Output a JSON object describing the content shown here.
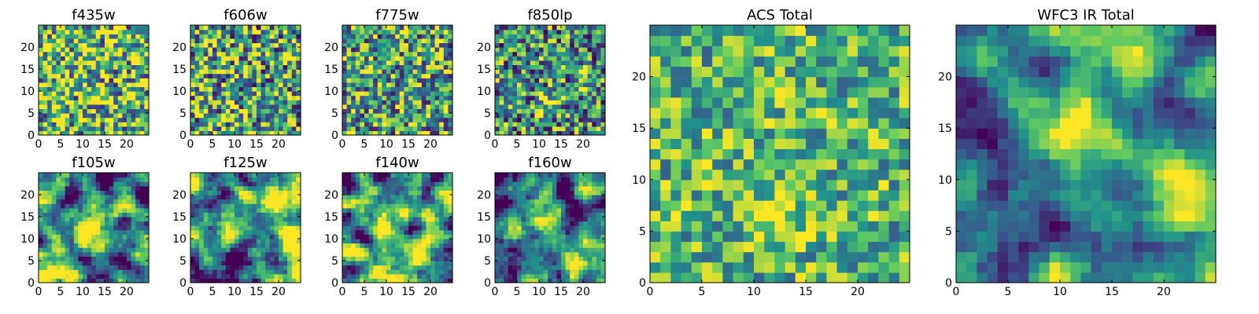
{
  "colormap": [
    "#440154",
    "#3b528b",
    "#21918c",
    "#5ec962",
    "#fde725"
  ],
  "chart_data": [
    {
      "type": "heatmap",
      "title": "f435w",
      "grid": [
        25,
        25
      ],
      "xlim": [
        0,
        25
      ],
      "ylim": [
        0,
        25
      ],
      "xticks": [
        "0",
        "5",
        "10",
        "15",
        "20"
      ],
      "yticks": [
        "0",
        "5",
        "10",
        "15",
        "20"
      ],
      "pattern": "noise",
      "mean": 0.68,
      "spread": 0.55,
      "features": []
    },
    {
      "type": "heatmap",
      "title": "f606w",
      "grid": [
        25,
        25
      ],
      "xlim": [
        0,
        25
      ],
      "ylim": [
        0,
        25
      ],
      "xticks": [
        "0",
        "5",
        "10",
        "15",
        "20"
      ],
      "yticks": [
        "0",
        "5",
        "10",
        "15",
        "20"
      ],
      "pattern": "noise",
      "mean": 0.6,
      "spread": 0.55,
      "features": []
    },
    {
      "type": "heatmap",
      "title": "f775w",
      "grid": [
        25,
        25
      ],
      "xlim": [
        0,
        25
      ],
      "ylim": [
        0,
        25
      ],
      "xticks": [
        "0",
        "5",
        "10",
        "15",
        "20"
      ],
      "yticks": [
        "0",
        "5",
        "10",
        "15",
        "20"
      ],
      "pattern": "noise",
      "mean": 0.58,
      "spread": 0.5,
      "features": []
    },
    {
      "type": "heatmap",
      "title": "f850lp",
      "grid": [
        25,
        25
      ],
      "xlim": [
        0,
        25
      ],
      "ylim": [
        0,
        25
      ],
      "xticks": [
        "0",
        "5",
        "10",
        "15",
        "20"
      ],
      "yticks": [
        "0",
        "5",
        "10",
        "15",
        "20"
      ],
      "pattern": "noise",
      "mean": 0.5,
      "spread": 0.5,
      "features": [
        {
          "x": 12,
          "y": 6.5,
          "amp": 0.35,
          "sigma": 1.6
        },
        {
          "x": 20,
          "y": 13,
          "amp": 0.2,
          "sigma": 1.5
        }
      ]
    },
    {
      "type": "heatmap",
      "title": "f105w",
      "grid": [
        25,
        25
      ],
      "xlim": [
        0,
        25
      ],
      "ylim": [
        0,
        25
      ],
      "xticks": [
        "0",
        "5",
        "10",
        "15",
        "20"
      ],
      "yticks": [
        "0",
        "5",
        "10",
        "15",
        "20"
      ],
      "pattern": "smooth",
      "mean": 0.45,
      "spread": 0.5,
      "features": [
        {
          "x": 11.5,
          "y": 13,
          "amp": 0.45,
          "sigma": 3
        },
        {
          "x": 22,
          "y": 10,
          "amp": 0.3,
          "sigma": 2.5
        }
      ]
    },
    {
      "type": "heatmap",
      "title": "f125w",
      "grid": [
        25,
        25
      ],
      "xlim": [
        0,
        25
      ],
      "ylim": [
        0,
        25
      ],
      "xticks": [
        "0",
        "5",
        "10",
        "15",
        "20"
      ],
      "yticks": [
        "0",
        "5",
        "10",
        "15",
        "20"
      ],
      "pattern": "smooth",
      "mean": 0.5,
      "spread": 0.5,
      "features": [
        {
          "x": 12,
          "y": 12,
          "amp": 0.4,
          "sigma": 3
        },
        {
          "x": 22,
          "y": 10,
          "amp": 0.35,
          "sigma": 2.5
        }
      ]
    },
    {
      "type": "heatmap",
      "title": "f140w",
      "grid": [
        25,
        25
      ],
      "xlim": [
        0,
        25
      ],
      "ylim": [
        0,
        25
      ],
      "xticks": [
        "0",
        "5",
        "10",
        "15",
        "20"
      ],
      "yticks": [
        "0",
        "5",
        "10",
        "15",
        "20"
      ],
      "pattern": "smooth",
      "mean": 0.5,
      "spread": 0.5,
      "features": [
        {
          "x": 11,
          "y": 14,
          "amp": 0.4,
          "sigma": 3
        },
        {
          "x": 22,
          "y": 11,
          "amp": 0.4,
          "sigma": 2.5
        }
      ]
    },
    {
      "type": "heatmap",
      "title": "f160w",
      "grid": [
        25,
        25
      ],
      "xlim": [
        0,
        25
      ],
      "ylim": [
        0,
        25
      ],
      "xticks": [
        "0",
        "5",
        "10",
        "15",
        "20"
      ],
      "yticks": [
        "0",
        "5",
        "10",
        "15",
        "20"
      ],
      "pattern": "smooth",
      "mean": 0.42,
      "spread": 0.5,
      "features": [
        {
          "x": 11,
          "y": 13,
          "amp": 0.45,
          "sigma": 2.5
        },
        {
          "x": 22,
          "y": 9,
          "amp": 0.3,
          "sigma": 2.5
        }
      ]
    },
    {
      "type": "heatmap",
      "title": "ACS Total",
      "grid": [
        25,
        25
      ],
      "xlim": [
        0,
        25
      ],
      "ylim": [
        0,
        25
      ],
      "xticks": [
        "0",
        "5",
        "10",
        "15",
        "20"
      ],
      "yticks": [
        "0",
        "5",
        "10",
        "15",
        "20"
      ],
      "pattern": "noise",
      "mean": 0.66,
      "spread": 0.35,
      "features": [
        {
          "x": 12.5,
          "y": 6,
          "amp": 0.3,
          "sigma": 2
        }
      ]
    },
    {
      "type": "heatmap",
      "title": "WFC3 IR Total",
      "grid": [
        25,
        25
      ],
      "xlim": [
        0,
        25
      ],
      "ylim": [
        0,
        25
      ],
      "xticks": [
        "0",
        "5",
        "10",
        "15",
        "20"
      ],
      "yticks": [
        "0",
        "5",
        "10",
        "15",
        "20"
      ],
      "pattern": "smooth",
      "mean": 0.42,
      "spread": 0.35,
      "features": [
        {
          "x": 11.5,
          "y": 13,
          "amp": 0.5,
          "sigma": 2.6
        },
        {
          "x": 22.5,
          "y": 9.5,
          "amp": 0.45,
          "sigma": 2.3
        }
      ]
    }
  ]
}
